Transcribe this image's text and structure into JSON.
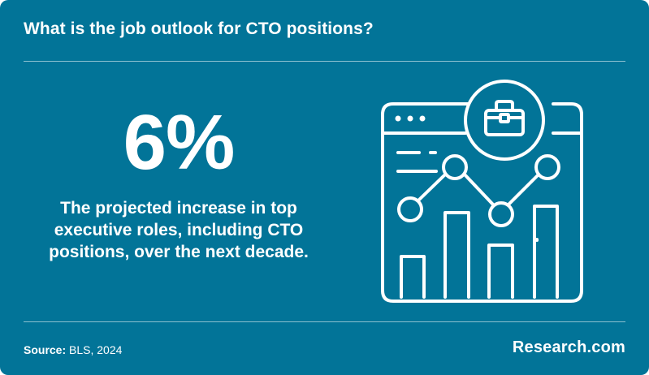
{
  "header": {
    "title": "What is the job outlook for CTO positions?"
  },
  "stat": {
    "value": "6%",
    "description": "The projected increase in top executive roles, including CTO positions, over the next decade."
  },
  "footer": {
    "source_label": "Source:",
    "source_value": "BLS, 2024",
    "brand": "Research.com"
  },
  "colors": {
    "background": "#027498",
    "foreground": "#ffffff"
  },
  "illustration": {
    "icon": "briefcase-analytics-dashboard-icon"
  }
}
